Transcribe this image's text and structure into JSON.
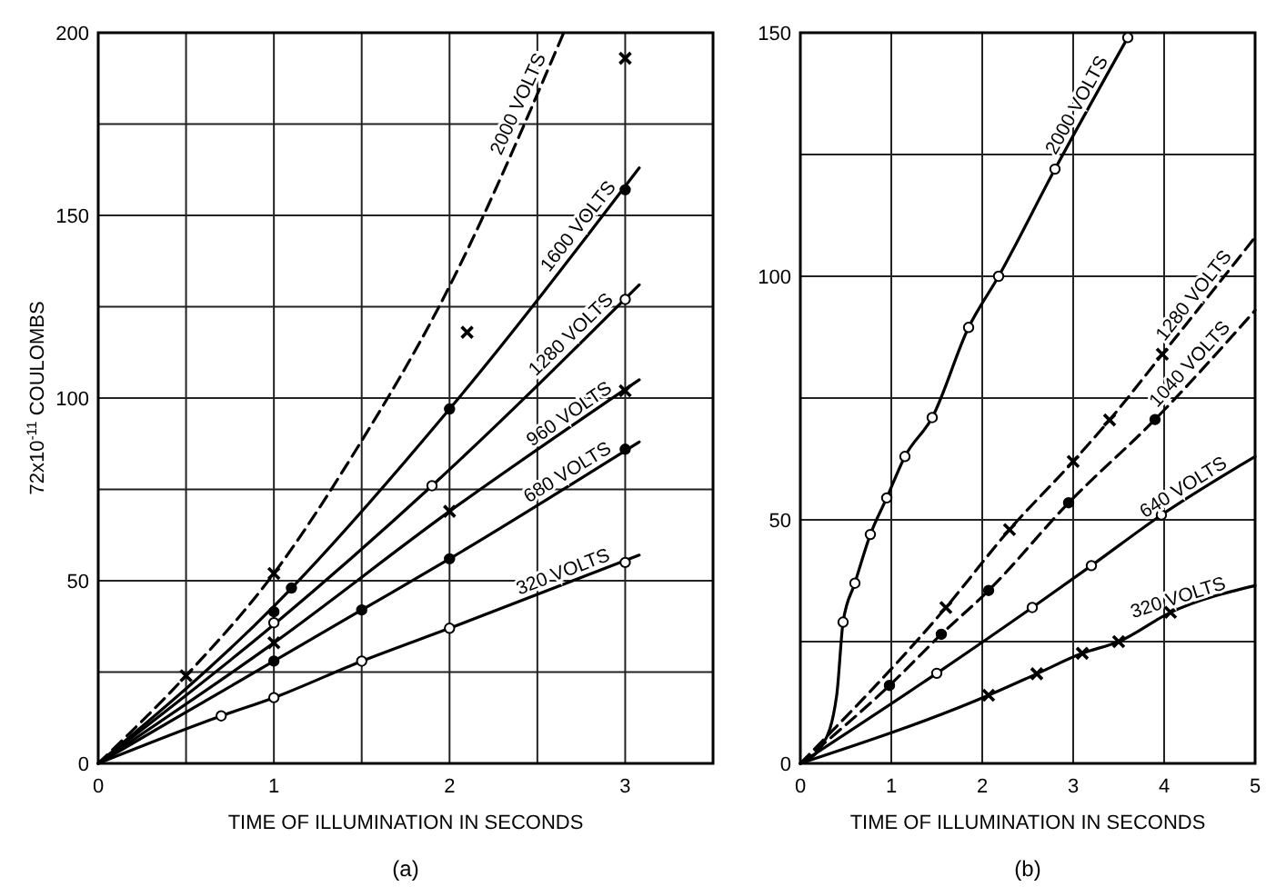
{
  "chart_data": [
    {
      "type": "line",
      "xlabel": "TIME OF ILLUMINATION IN SECONDS",
      "ylabel": "72x10$^{-11}$ COULOMBS",
      "annotations": [
        "(a)"
      ],
      "xlim": [
        0,
        3.5
      ],
      "ylim": [
        0,
        200
      ],
      "xticks": [
        0,
        {
          "value": 0.5,
          "label": null
        },
        1,
        {
          "value": 1.5,
          "label": null
        },
        2,
        {
          "value": 2.5,
          "label": null
        },
        3
      ],
      "yticks": [
        0,
        {
          "value": 25,
          "label": null
        },
        50,
        {
          "value": 75,
          "label": null
        },
        100,
        {
          "value": 125,
          "label": null
        },
        150,
        {
          "value": 175,
          "label": null
        },
        200
      ],
      "grid": true,
      "series": [
        {
          "type": "line",
          "name": "2000 VOLTS",
          "color": "#000000",
          "line_style": "dashed",
          "marker": "none",
          "x": [
            0,
            0.5,
            1,
            1.47,
            1.94,
            2.65
          ],
          "values": [
            0,
            24,
            52,
            86,
            125,
            200
          ]
        },
        {
          "type": "scatter",
          "color": "#000000",
          "marker": "cross",
          "x": [
            0.5,
            1,
            2.1,
            3
          ],
          "values": [
            24,
            52,
            118,
            193
          ]
        },
        {
          "type": "line",
          "name": "1600 VOLTS",
          "color": "#000000",
          "line_style": "solid",
          "marker": "none",
          "x": [
            0,
            1,
            2,
            3.08
          ],
          "values": [
            0,
            43,
            97,
            163
          ]
        },
        {
          "type": "scatter",
          "color": "#000000",
          "marker": "circle",
          "x": [
            1,
            1.1,
            2,
            3
          ],
          "values": [
            41.5,
            48,
            97,
            157
          ]
        },
        {
          "type": "line",
          "name": "1280 VOLTS",
          "color": "#000000",
          "line_style": "solid",
          "marker": "none",
          "x": [
            0,
            1,
            1.9,
            3.08
          ],
          "values": [
            0,
            38,
            76,
            131
          ]
        },
        {
          "type": "scatter",
          "color": "#ffffff",
          "marker": "circle",
          "x": [
            1,
            1.9,
            3
          ],
          "values": [
            38.5,
            76,
            127
          ]
        },
        {
          "type": "line",
          "name": "960 VOLTS",
          "color": "#000000",
          "line_style": "solid",
          "marker": "none",
          "x": [
            0,
            1,
            2,
            3.08
          ],
          "values": [
            0,
            33,
            69,
            105
          ]
        },
        {
          "type": "scatter",
          "color": "#000000",
          "marker": "cross",
          "x": [
            1,
            2,
            3
          ],
          "values": [
            33,
            69,
            102
          ]
        },
        {
          "type": "line",
          "name": "680 VOLTS",
          "color": "#000000",
          "line_style": "solid",
          "marker": "none",
          "x": [
            0,
            1,
            1.5,
            2,
            3.08
          ],
          "values": [
            0,
            28,
            42,
            56,
            88
          ]
        },
        {
          "type": "scatter",
          "color": "#000000",
          "marker": "circle",
          "x": [
            1,
            1.5,
            2,
            3
          ],
          "values": [
            28,
            42,
            56,
            86
          ]
        },
        {
          "type": "line",
          "name": "320 VOLTS",
          "color": "#000000",
          "line_style": "solid",
          "marker": "none",
          "x": [
            0,
            0.7,
            1,
            1.5,
            2,
            3.08
          ],
          "values": [
            0,
            13,
            18,
            28,
            37,
            57
          ]
        },
        {
          "type": "scatter",
          "color": "#ffffff",
          "marker": "circle",
          "x": [
            0.7,
            1,
            1.5,
            2,
            3
          ],
          "values": [
            13,
            18,
            28,
            37,
            55
          ]
        }
      ]
    },
    {
      "type": "line",
      "xlabel": "TIME OF ILLUMINATION IN SECONDS",
      "annotations": [
        "(b)"
      ],
      "xlim": [
        0,
        5
      ],
      "ylim": [
        0,
        150
      ],
      "xticks": [
        0,
        1,
        2,
        3,
        4,
        5
      ],
      "yticks": [
        0,
        {
          "value": 25,
          "label": null
        },
        50,
        {
          "value": 75,
          "label": null
        },
        100,
        {
          "value": 125,
          "label": null
        },
        150
      ],
      "grid": true,
      "series": [
        {
          "type": "line",
          "name": "2000 VOLTS",
          "color": "#000000",
          "line_style": "solid",
          "marker": "none",
          "x": [
            0,
            0.25,
            0.4,
            0.47,
            0.6,
            0.77,
            0.95,
            1.15,
            1.45,
            1.85,
            2.18,
            2.8,
            3.6
          ],
          "values": [
            0,
            4,
            14,
            29,
            37,
            47,
            54.5,
            63,
            71,
            89.5,
            100,
            122,
            149
          ]
        },
        {
          "type": "scatter",
          "color": "#ffffff",
          "marker": "circle",
          "x": [
            0.47,
            0.6,
            0.77,
            0.95,
            1.15,
            1.45,
            1.85,
            2.18,
            2.8,
            3.6
          ],
          "values": [
            29,
            37,
            47,
            54.5,
            63,
            71,
            89.5,
            100,
            122,
            149
          ]
        },
        {
          "type": "line",
          "name": "1280 VOLTS",
          "color": "#000000",
          "line_style": "dashed",
          "marker": "none",
          "x": [
            0,
            1.6,
            2.3,
            3,
            3.4,
            3.98,
            5
          ],
          "values": [
            0,
            32,
            48,
            62,
            70.5,
            84,
            108
          ]
        },
        {
          "type": "scatter",
          "color": "#000000",
          "marker": "cross",
          "x": [
            1.6,
            2.3,
            3,
            3.4,
            3.98
          ],
          "values": [
            32,
            48,
            62,
            70.5,
            84
          ]
        },
        {
          "type": "line",
          "name": "1040 VOLTS",
          "color": "#000000",
          "line_style": "dashed",
          "marker": "none",
          "x": [
            0,
            0.98,
            1.55,
            2.07,
            2.95,
            3.9,
            5
          ],
          "values": [
            0,
            16,
            26.5,
            35.5,
            53.5,
            70.6,
            93
          ]
        },
        {
          "type": "scatter",
          "color": "#000000",
          "marker": "circle",
          "x": [
            0.98,
            1.55,
            2.07,
            2.95,
            3.9
          ],
          "values": [
            16,
            26.5,
            35.5,
            53.5,
            70.6
          ]
        },
        {
          "type": "line",
          "name": "640 VOLTS",
          "color": "#000000",
          "line_style": "solid",
          "marker": "none",
          "x": [
            0,
            1.5,
            2.55,
            3.2,
            3.97,
            5
          ],
          "values": [
            0,
            18.5,
            32,
            40.6,
            51,
            63
          ]
        },
        {
          "type": "scatter",
          "color": "#ffffff",
          "marker": "circle",
          "x": [
            1.5,
            2.55,
            3.2,
            3.97
          ],
          "values": [
            18.5,
            32,
            40.6,
            51
          ]
        },
        {
          "type": "line",
          "name": "320 VOLTS",
          "color": "#000000",
          "line_style": "solid",
          "marker": "none",
          "x": [
            0,
            2.07,
            2.6,
            3.1,
            3.5,
            4.07,
            5
          ],
          "values": [
            0,
            14,
            18.4,
            22.6,
            25,
            31,
            36.5
          ]
        },
        {
          "type": "scatter",
          "color": "#000000",
          "marker": "cross",
          "x": [
            2.07,
            2.6,
            3.1,
            3.5,
            4.07
          ],
          "values": [
            14,
            18.4,
            22.6,
            25,
            31
          ]
        }
      ]
    }
  ]
}
